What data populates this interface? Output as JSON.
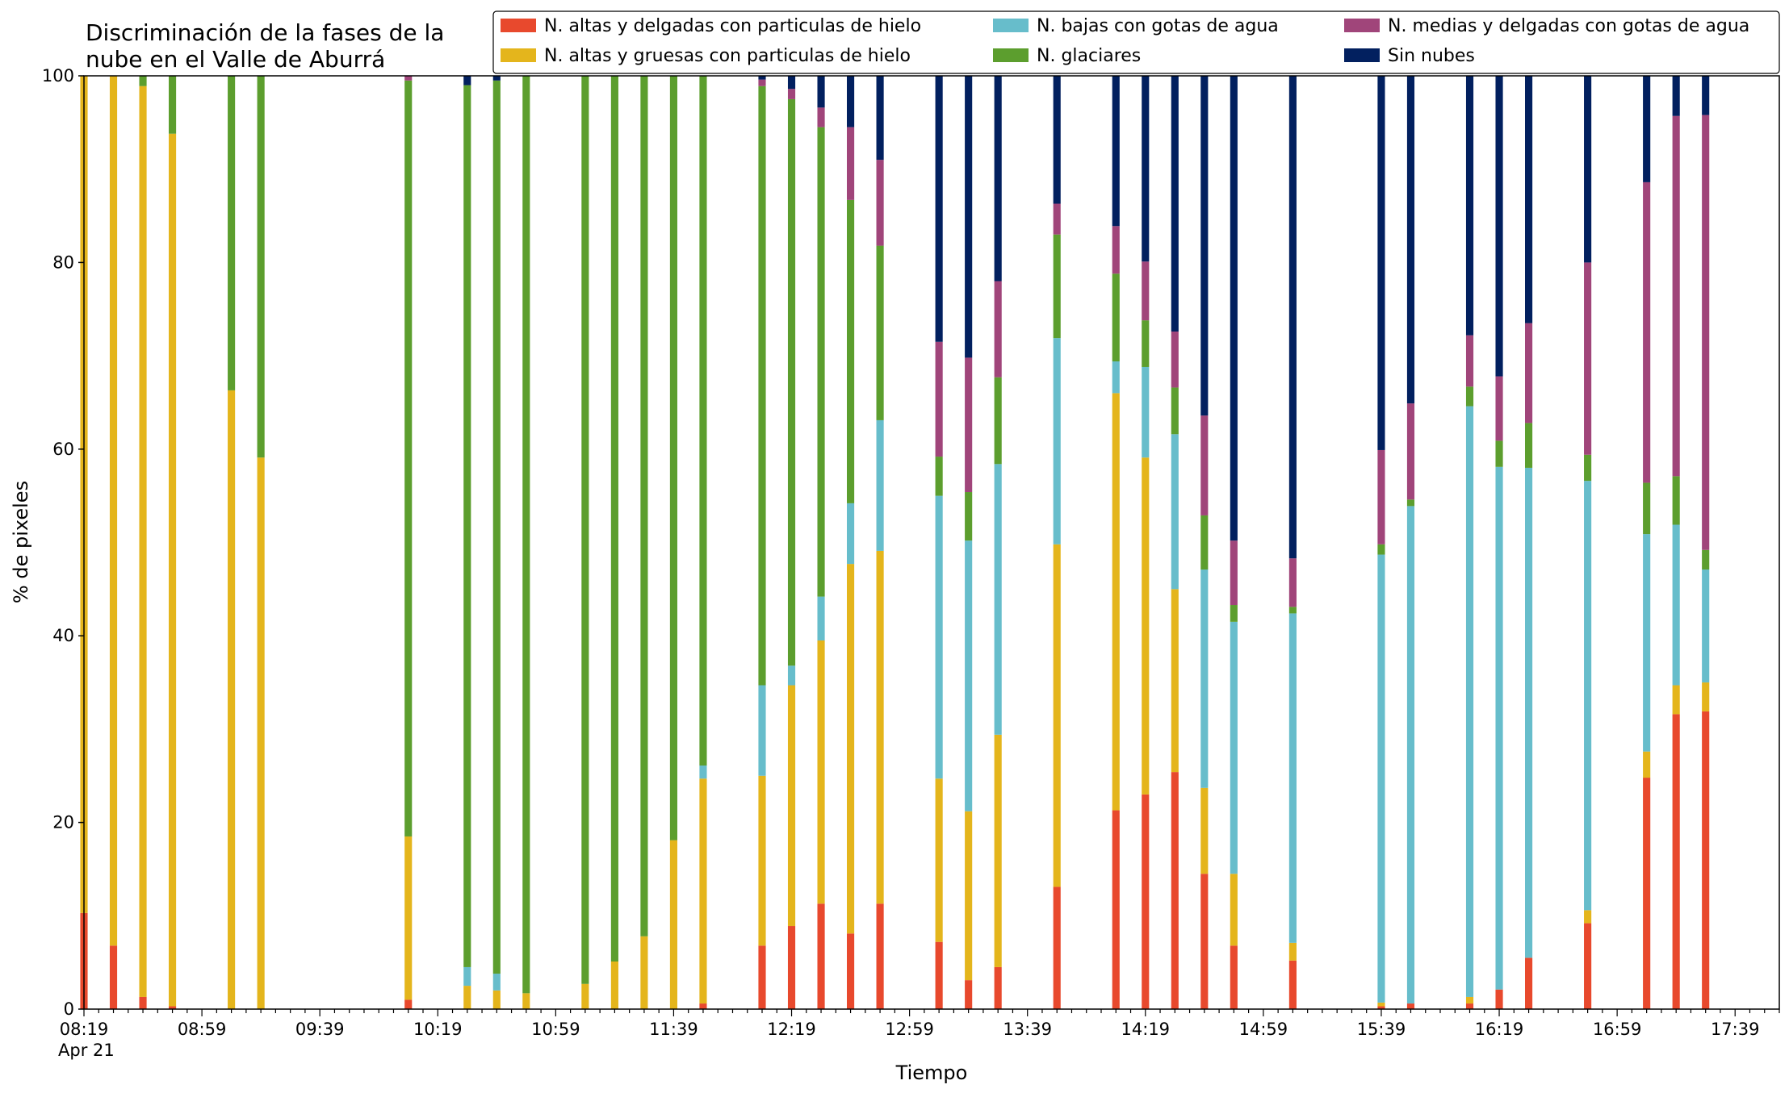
{
  "chart_data": {
    "type": "bar",
    "stacked": true,
    "title": "Discriminación de la fases de la nube en el Valle de Aburrá",
    "title_lines": [
      "Discriminación de la fases de la",
      "nube en el Valle de Aburrá"
    ],
    "xlabel": "Tiempo",
    "ylabel": "% de pixeles",
    "ylim": [
      0,
      100
    ],
    "yticks": [
      0,
      20,
      40,
      60,
      80,
      100
    ],
    "x_start": "08:19",
    "x_end": "17:54",
    "x_interval_minutes": 5,
    "x_tick_labels": [
      "08:19",
      "08:59",
      "09:39",
      "10:19",
      "10:59",
      "11:39",
      "12:19",
      "12:59",
      "13:39",
      "14:19",
      "14:59",
      "15:39",
      "16:19",
      "16:59",
      "17:39"
    ],
    "x_date_label": "Apr 21",
    "legend_position": "top-right",
    "legend_columns": 3,
    "colors": [
      "#e8492d",
      "#e4b51c",
      "#67bdcb",
      "#5c9e2e",
      "#a0457a",
      "#02205f"
    ],
    "series": [
      {
        "name": "N. altas y delgadas con particulas de hielo",
        "color": "#e8492d"
      },
      {
        "name": "N. altas y gruesas con particulas de hielo",
        "color": "#e4b51c"
      },
      {
        "name": "N. bajas con gotas de agua",
        "color": "#67bdcb"
      },
      {
        "name": "N. glaciares",
        "color": "#5c9e2e"
      },
      {
        "name": "N. medias y delgadas con gotas de agua",
        "color": "#a0457a"
      },
      {
        "name": "Sin nubes",
        "color": "#02205f"
      }
    ],
    "bars": [
      {
        "x": "08:19",
        "values": [
          10.3,
          89.7,
          0,
          0,
          0,
          0
        ]
      },
      {
        "x": "08:29",
        "values": [
          6.8,
          93.2,
          0,
          0,
          0,
          0
        ]
      },
      {
        "x": "08:39",
        "values": [
          1.3,
          97.6,
          0,
          1.1,
          0,
          0
        ]
      },
      {
        "x": "08:49",
        "values": [
          0.3,
          93.5,
          0,
          6.2,
          0,
          0
        ]
      },
      {
        "x": "09:09",
        "values": [
          0,
          66.3,
          0,
          33.7,
          0,
          0
        ]
      },
      {
        "x": "09:19",
        "values": [
          0,
          59.1,
          0,
          40.9,
          0,
          0
        ]
      },
      {
        "x": "10:09",
        "values": [
          1.0,
          17.5,
          0,
          81.0,
          0.5,
          0
        ]
      },
      {
        "x": "10:29",
        "values": [
          0,
          2.5,
          2.0,
          94.5,
          0,
          1.0
        ]
      },
      {
        "x": "10:39",
        "values": [
          0,
          2.0,
          1.8,
          95.7,
          0,
          0.5
        ]
      },
      {
        "x": "10:49",
        "values": [
          0,
          1.7,
          0,
          98.3,
          0,
          0
        ]
      },
      {
        "x": "11:09",
        "values": [
          0,
          2.7,
          0,
          97.3,
          0,
          0
        ]
      },
      {
        "x": "11:19",
        "values": [
          0,
          5.1,
          0,
          94.9,
          0,
          0
        ]
      },
      {
        "x": "11:29",
        "values": [
          0,
          7.8,
          0,
          92.2,
          0,
          0
        ]
      },
      {
        "x": "11:39",
        "values": [
          0,
          18.1,
          0,
          81.9,
          0,
          0
        ]
      },
      {
        "x": "11:49",
        "values": [
          0.6,
          24.1,
          1.4,
          73.9,
          0,
          0
        ]
      },
      {
        "x": "12:09",
        "values": [
          6.8,
          18.2,
          9.7,
          64.2,
          0.7,
          0.4
        ]
      },
      {
        "x": "12:19",
        "values": [
          8.9,
          25.8,
          2.1,
          60.7,
          1.1,
          1.4
        ]
      },
      {
        "x": "12:29",
        "values": [
          11.3,
          28.2,
          4.7,
          50.3,
          2.1,
          3.4
        ]
      },
      {
        "x": "12:39",
        "values": [
          8.1,
          39.6,
          6.5,
          32.5,
          7.8,
          5.5
        ]
      },
      {
        "x": "12:49",
        "values": [
          11.3,
          37.8,
          14.0,
          18.7,
          9.2,
          9.0
        ]
      },
      {
        "x": "13:09",
        "values": [
          7.2,
          17.5,
          30.3,
          4.2,
          12.3,
          28.5
        ]
      },
      {
        "x": "13:19",
        "values": [
          3.1,
          18.1,
          29.0,
          5.2,
          14.4,
          30.2
        ]
      },
      {
        "x": "13:29",
        "values": [
          4.5,
          24.9,
          29.0,
          9.3,
          10.3,
          22.0
        ]
      },
      {
        "x": "13:49",
        "values": [
          13.1,
          36.7,
          22.1,
          11.1,
          3.3,
          13.7
        ]
      },
      {
        "x": "14:09",
        "values": [
          21.3,
          44.7,
          3.4,
          9.4,
          5.1,
          16.1
        ]
      },
      {
        "x": "14:19",
        "values": [
          23.0,
          36.1,
          9.7,
          5.0,
          6.3,
          19.9
        ]
      },
      {
        "x": "14:29",
        "values": [
          25.4,
          19.6,
          16.6,
          5.0,
          6.0,
          27.4
        ]
      },
      {
        "x": "14:39",
        "values": [
          14.5,
          9.2,
          23.4,
          5.8,
          10.7,
          36.4
        ]
      },
      {
        "x": "14:49",
        "values": [
          6.8,
          7.7,
          27.0,
          1.8,
          6.9,
          49.8
        ]
      },
      {
        "x": "15:09",
        "values": [
          5.2,
          1.9,
          35.3,
          0.7,
          5.2,
          51.7
        ]
      },
      {
        "x": "15:39",
        "values": [
          0.3,
          0.4,
          48.0,
          1.1,
          10.1,
          40.1
        ]
      },
      {
        "x": "15:49",
        "values": [
          0.6,
          0,
          53.3,
          0.7,
          10.3,
          35.1
        ]
      },
      {
        "x": "16:09",
        "values": [
          0.6,
          0.7,
          63.3,
          2.1,
          5.5,
          27.8
        ]
      },
      {
        "x": "16:19",
        "values": [
          2.1,
          0,
          56.0,
          2.8,
          6.9,
          32.2
        ]
      },
      {
        "x": "16:29",
        "values": [
          5.5,
          0,
          52.5,
          4.8,
          10.7,
          26.5
        ]
      },
      {
        "x": "16:49",
        "values": [
          9.2,
          1.4,
          46.0,
          2.8,
          20.6,
          20.0
        ]
      },
      {
        "x": "17:09",
        "values": [
          24.8,
          2.8,
          23.3,
          5.5,
          32.2,
          11.4
        ]
      },
      {
        "x": "17:19",
        "values": [
          31.6,
          3.1,
          17.2,
          5.2,
          38.6,
          4.3
        ]
      },
      {
        "x": "17:29",
        "values": [
          31.9,
          3.1,
          12.1,
          2.1,
          46.6,
          4.2
        ]
      }
    ]
  }
}
